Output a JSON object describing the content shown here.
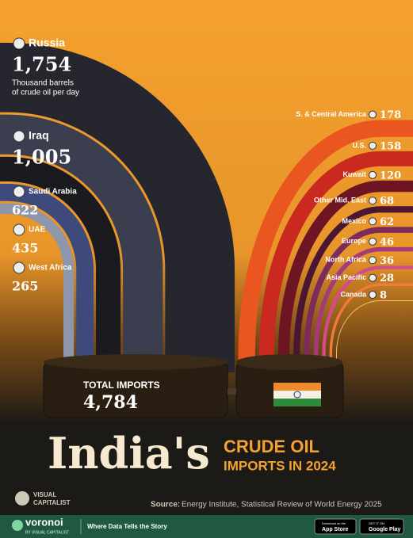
{
  "chart_data": {
    "type": "pipe",
    "title": "India's",
    "subtitle": [
      "CRUDE OIL",
      "IMPORTS IN 2024"
    ],
    "total_label": "TOTAL IMPORTS",
    "total": "4,784",
    "unit_note": [
      "Thousand barrels",
      "of crude oil per day"
    ],
    "categories": [
      "Russia",
      "Iraq",
      "Saudi Arabia",
      "UAE",
      "West Africa",
      "S. & Central America",
      "U.S.",
      "Kuwait",
      "Other Mid. East",
      "Mexico",
      "Europe",
      "North Africa",
      "Asia Pacific",
      "Canada"
    ],
    "values": [
      1754,
      1005,
      622,
      435,
      265,
      178,
      158,
      120,
      68,
      62,
      46,
      36,
      28,
      8
    ],
    "value_labels": [
      "1,754",
      "1,005",
      "622",
      "435",
      "265",
      "178",
      "158",
      "120",
      "68",
      "62",
      "46",
      "36",
      "28",
      "8"
    ],
    "colors": [
      "#26262e",
      "#3b3e4f",
      "#1b1b1f",
      "#3e4a7c",
      "#8d96ab",
      "#e9561f",
      "#c9291f",
      "#6e1523",
      "#4a1631",
      "#7c2b5b",
      "#a33b7b",
      "#d24b8b",
      "#f07b3b",
      "#f5c45b"
    ],
    "source_label": "Source:",
    "source": "Energy Institute, Statistical Review of World Energy 2025"
  },
  "footer": {
    "logo": [
      "VISUAL",
      "CAPITALIST"
    ],
    "brand": "voronoi",
    "brand_sub": "BY VISUAL CAPITALIST",
    "tagline": "Where Data Tells the Story",
    "app_store": [
      "Download on the",
      "App Store"
    ],
    "google_play": [
      "GET IT ON",
      "Google Play"
    ]
  }
}
